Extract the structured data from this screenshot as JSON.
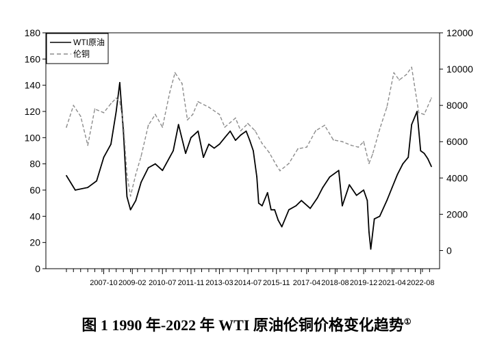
{
  "caption": {
    "text": "图 1 1990 年-2022 年 WTI 原油伦铜价格变化趋势",
    "footnote_mark": "①"
  },
  "chart_data": {
    "type": "line",
    "title": "",
    "xlabel": "",
    "ylabel": "",
    "y2label": "",
    "legend_position": "top-left",
    "grid": false,
    "ylim": [
      0,
      180
    ],
    "y2lim": [
      -1000,
      12000
    ],
    "yticks": [
      "0",
      "20",
      "40",
      "60",
      "80",
      "100",
      "120",
      "140",
      "160",
      "180"
    ],
    "y2ticks": [
      "0",
      "2000",
      "4000",
      "6000",
      "8000",
      "10000",
      "12000"
    ],
    "xticks": [
      "2007-10",
      "2009-02",
      "2010-07",
      "2011-11",
      "2013-03",
      "2014-07",
      "2015-11",
      "2017-04",
      "2018-08",
      "2019-12",
      "2021-04",
      "2022-08"
    ],
    "series": [
      {
        "name": "WTI原油",
        "axis": "left",
        "color": "#000000",
        "style": "solid",
        "x": [
          "2006-01",
          "2006-06",
          "2007-01",
          "2007-06",
          "2007-10",
          "2008-02",
          "2008-05",
          "2008-07",
          "2008-09",
          "2008-11",
          "2009-01",
          "2009-04",
          "2009-07",
          "2009-11",
          "2010-03",
          "2010-07",
          "2010-11",
          "2011-01",
          "2011-04",
          "2011-08",
          "2011-11",
          "2012-03",
          "2012-06",
          "2012-09",
          "2012-12",
          "2013-03",
          "2013-06",
          "2013-09",
          "2013-12",
          "2014-03",
          "2014-06",
          "2014-08",
          "2014-10",
          "2014-12",
          "2015-01",
          "2015-03",
          "2015-06",
          "2015-08",
          "2015-10",
          "2015-12",
          "2016-02",
          "2016-06",
          "2016-10",
          "2017-01",
          "2017-06",
          "2017-10",
          "2018-01",
          "2018-05",
          "2018-10",
          "2018-12",
          "2019-04",
          "2019-08",
          "2019-12",
          "2020-02",
          "2020-03",
          "2020-04",
          "2020-06",
          "2020-09",
          "2021-01",
          "2021-04",
          "2021-07",
          "2021-10",
          "2022-01",
          "2022-03",
          "2022-06",
          "2022-08",
          "2022-10",
          "2022-12",
          "2023-02"
        ],
        "values": [
          71,
          60,
          62,
          67,
          85,
          95,
          120,
          142,
          105,
          55,
          45,
          52,
          66,
          77,
          80,
          75,
          85,
          90,
          110,
          88,
          100,
          105,
          85,
          95,
          92,
          95,
          100,
          105,
          98,
          102,
          105,
          98,
          90,
          70,
          50,
          48,
          58,
          45,
          45,
          37,
          32,
          45,
          48,
          52,
          46,
          54,
          62,
          70,
          75,
          48,
          64,
          56,
          60,
          52,
          28,
          15,
          38,
          40,
          52,
          62,
          72,
          80,
          85,
          110,
          120,
          90,
          88,
          84,
          78
        ]
      },
      {
        "name": "伦铜",
        "axis": "right",
        "color": "#8c8c8c",
        "style": "dashed",
        "x": [
          "2006-01",
          "2006-05",
          "2006-09",
          "2007-01",
          "2007-05",
          "2007-10",
          "2008-02",
          "2008-05",
          "2008-07",
          "2008-09",
          "2008-11",
          "2009-01",
          "2009-04",
          "2009-07",
          "2009-11",
          "2010-03",
          "2010-07",
          "2010-11",
          "2011-02",
          "2011-06",
          "2011-09",
          "2011-12",
          "2012-03",
          "2012-09",
          "2013-03",
          "2013-06",
          "2013-12",
          "2014-03",
          "2014-07",
          "2014-11",
          "2015-03",
          "2015-07",
          "2015-11",
          "2016-01",
          "2016-06",
          "2016-11",
          "2017-04",
          "2017-09",
          "2018-02",
          "2018-07",
          "2018-12",
          "2019-05",
          "2019-09",
          "2019-12",
          "2020-01",
          "2020-03",
          "2020-05",
          "2020-09",
          "2021-01",
          "2021-05",
          "2021-08",
          "2021-12",
          "2022-03",
          "2022-07",
          "2022-10",
          "2023-02"
        ],
        "values": [
          6800,
          8000,
          7400,
          5800,
          7800,
          7600,
          8100,
          8400,
          8200,
          7000,
          4200,
          3000,
          4200,
          5200,
          6900,
          7500,
          6800,
          8700,
          9800,
          9200,
          7200,
          7500,
          8200,
          7900,
          7500,
          6800,
          7300,
          6600,
          7000,
          6600,
          5900,
          5400,
          4700,
          4400,
          4800,
          5600,
          5700,
          6600,
          6900,
          6100,
          6000,
          5800,
          5700,
          6000,
          5600,
          4800,
          5300,
          6700,
          7900,
          9800,
          9400,
          9700,
          10100,
          7600,
          7500,
          8400
        ]
      }
    ]
  }
}
